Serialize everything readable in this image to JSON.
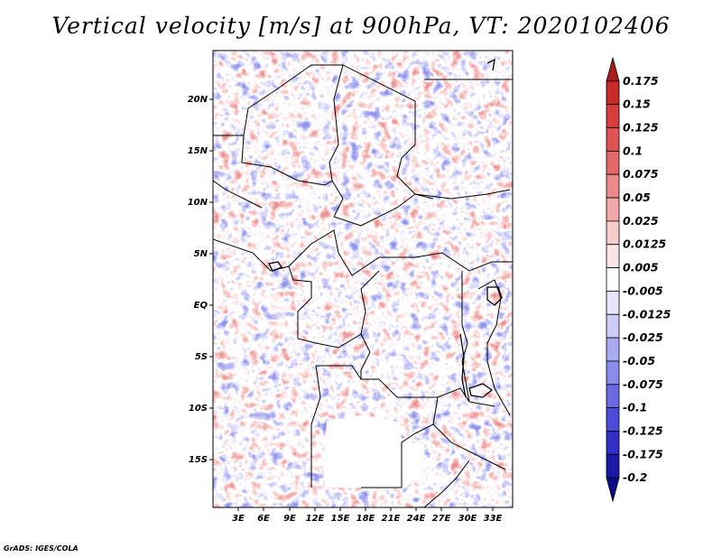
{
  "title": "Vertical velocity [m/s] at 900hPa, VT: 2020102406",
  "credit": "GrADS: IGES/COLA",
  "map": {
    "lat_labels": [
      "20N",
      "15N",
      "10N",
      "5N",
      "EQ",
      "5S",
      "10S",
      "15S"
    ],
    "lon_labels": [
      "3E",
      "6E",
      "9E",
      "12E",
      "15E",
      "18E",
      "21E",
      "24E",
      "27E",
      "30E",
      "33E"
    ]
  },
  "colorbar": {
    "levels": [
      "0.175",
      "0.15",
      "0.125",
      "0.1",
      "0.075",
      "0.05",
      "0.025",
      "0.0125",
      "0.005",
      "-0.005",
      "-0.0125",
      "-0.025",
      "-0.05",
      "-0.075",
      "-0.1",
      "-0.125",
      "-0.175",
      "-0.2"
    ],
    "colors": [
      "#aa1c1c",
      "#c82a2a",
      "#d83c3c",
      "#e05252",
      "#e46a6a",
      "#ea8a8a",
      "#f0a8a8",
      "#f6cccc",
      "#fbe6e6",
      "#ffffff",
      "#e6e6fb",
      "#ccccf6",
      "#aaaaf0",
      "#8a8aea",
      "#6a6ae4",
      "#4c4cd8",
      "#3030c8",
      "#1a1aa8",
      "#0c0c88"
    ]
  }
}
